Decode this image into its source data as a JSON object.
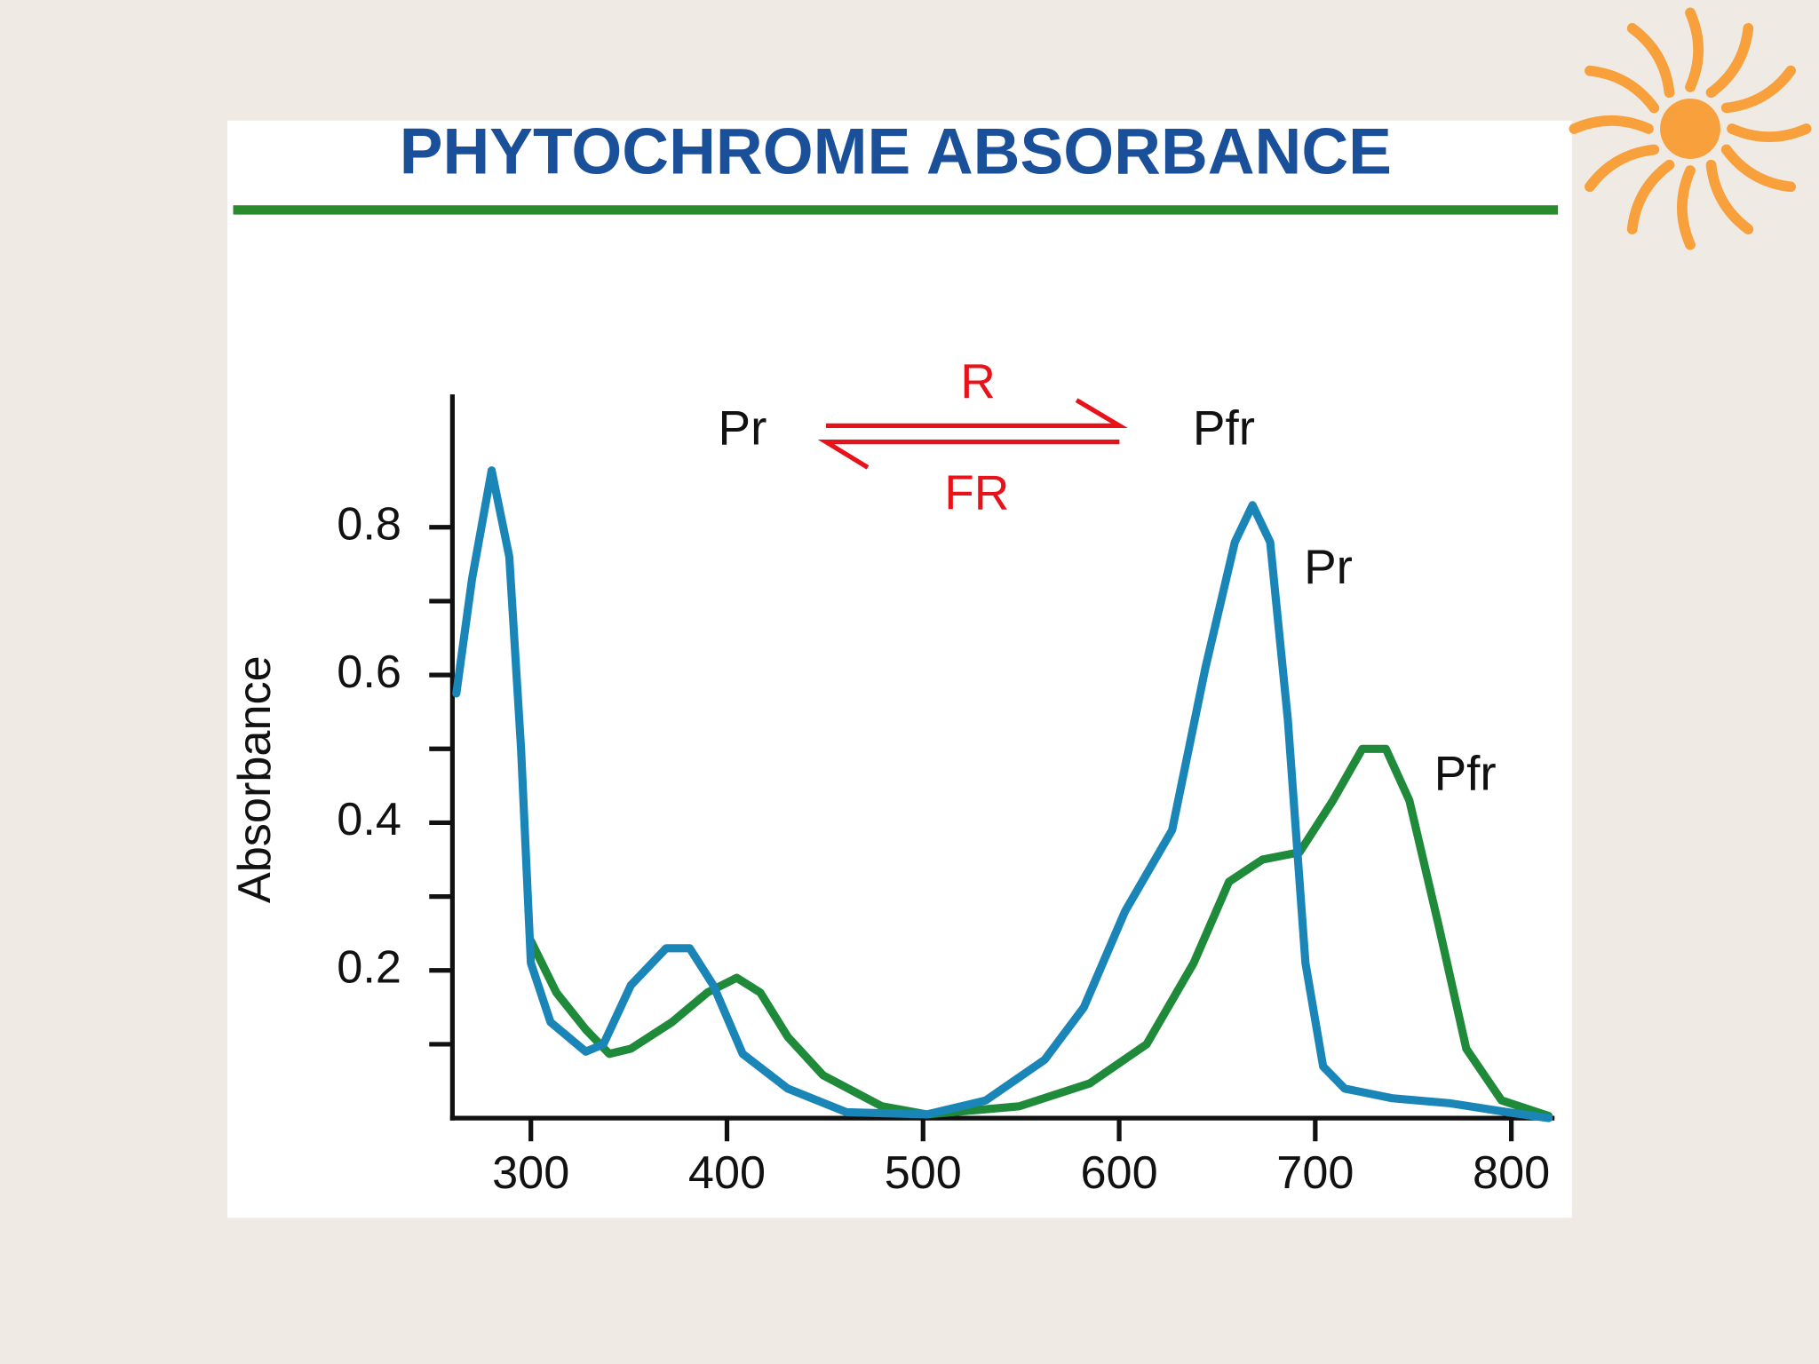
{
  "chart_data": {
    "type": "line",
    "title": "PHYTOCHROME ABSORBANCE",
    "y_label": "Absorbance",
    "reaction": {
      "reactant": "Pr",
      "product": "Pfr",
      "forward": "R",
      "reverse": "FR"
    },
    "xlim": [
      260,
      822
    ],
    "ylim": [
      0,
      0.98
    ],
    "xticks": [
      300,
      400,
      500,
      600,
      700,
      800
    ],
    "yticks": [
      0.2,
      0.4,
      0.6,
      0.8
    ],
    "yminor_ticks": [
      0.1,
      0.3,
      0.5,
      0.7
    ],
    "series": [
      {
        "name": "Pr",
        "color": "#1a86b8",
        "x": [
          262,
          270,
          280,
          289,
          295,
          300,
          310,
          328,
          337,
          351,
          369,
          381,
          393,
          408,
          431,
          461,
          502,
          532,
          562,
          582,
          603,
          627,
          644,
          659,
          668,
          677,
          686,
          695,
          704,
          715,
          739,
          769,
          798,
          819
        ],
        "values": [
          0.575,
          0.73,
          0.877,
          0.76,
          0.5,
          0.21,
          0.13,
          0.09,
          0.1,
          0.18,
          0.23,
          0.23,
          0.18,
          0.087,
          0.04,
          0.008,
          0.005,
          0.024,
          0.079,
          0.15,
          0.28,
          0.39,
          0.61,
          0.78,
          0.83,
          0.78,
          0.54,
          0.21,
          0.07,
          0.04,
          0.027,
          0.02,
          0.008,
          0.0
        ]
      },
      {
        "name": "Pfr",
        "color": "#1f8a3a",
        "x": [
          300,
          313,
          328,
          340,
          351,
          372,
          390,
          405,
          417,
          431,
          449,
          479,
          502,
          549,
          585,
          614,
          638,
          656,
          673,
          692,
          709,
          724,
          736,
          748,
          763,
          777,
          795,
          819
        ],
        "values": [
          0.24,
          0.17,
          0.12,
          0.087,
          0.094,
          0.13,
          0.17,
          0.19,
          0.17,
          0.11,
          0.058,
          0.016,
          0.005,
          0.016,
          0.047,
          0.1,
          0.21,
          0.32,
          0.35,
          0.36,
          0.43,
          0.5,
          0.5,
          0.43,
          0.26,
          0.094,
          0.024,
          0.003
        ]
      }
    ]
  }
}
